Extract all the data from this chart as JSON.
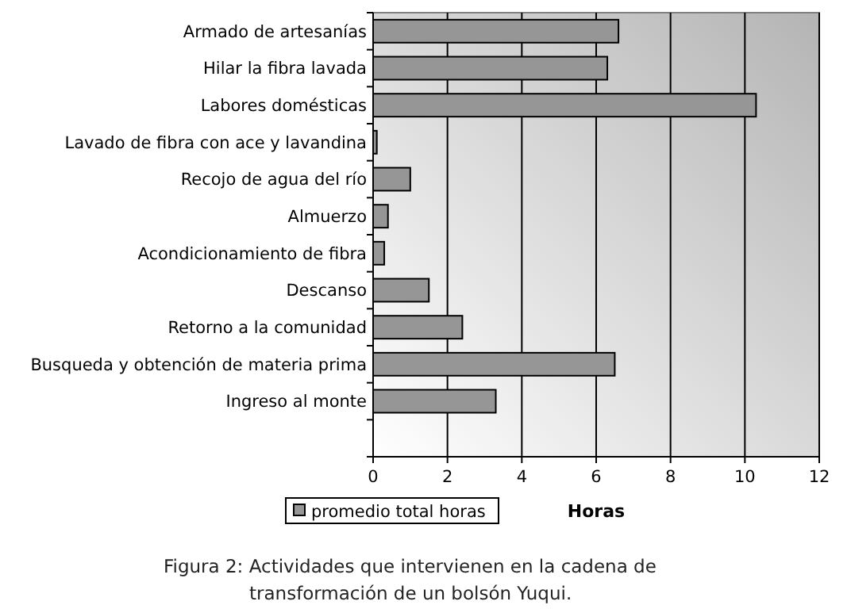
{
  "chart_data": {
    "type": "bar",
    "orientation": "horizontal",
    "xlabel": "Horas",
    "categories": [
      "Armado de artesanías",
      "Hilar la fibra lavada",
      "Labores domésticas",
      "Lavado de fibra con ace y lavandina",
      "Recojo de agua del río",
      "Almuerzo",
      "Acondicionamiento de fibra",
      "Descanso",
      "Retorno a la comunidad",
      "Busqueda y obtención de materia prima",
      "Ingreso al monte",
      null
    ],
    "series": [
      {
        "name": "promedio total horas",
        "color": "#969696",
        "values": [
          6.6,
          6.3,
          10.3,
          0.1,
          1.0,
          0.4,
          0.3,
          1.5,
          2.4,
          6.5,
          3.3,
          null
        ]
      }
    ],
    "xlim": [
      0,
      12
    ],
    "xticks": [
      0,
      2,
      4,
      6,
      8,
      10,
      12
    ],
    "grid": "x",
    "legend": "bottom left",
    "annotations": [
      "Figura 2:  Actividades que intervienen en la cadena de transformación de un bolsón Yuqui."
    ]
  }
}
